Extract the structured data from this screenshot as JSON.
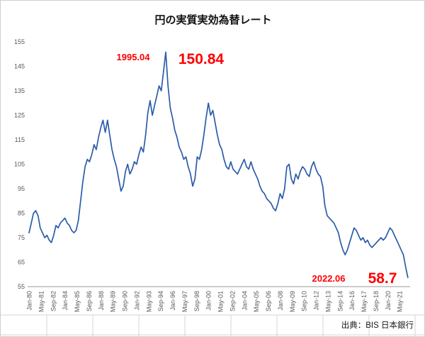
{
  "title": "円の実質実効為替レート",
  "source": "出典：BIS 日本銀行",
  "annotations": {
    "peak_date": "1995.04",
    "peak_value": "150.84",
    "trough_date": "2022.06",
    "trough_value": "58.7"
  },
  "colors": {
    "line": "#2a5caa",
    "annotation": "#ff0000",
    "axis_text": "#595959",
    "axis_line": "#9a9a9a",
    "sheet_grid": "#d4d4d4"
  },
  "chart_data": {
    "type": "line",
    "title": "円の実質実効為替レート",
    "xlabel": "",
    "ylabel": "",
    "ylim": [
      55,
      155
    ],
    "y_ticks": [
      55,
      65,
      75,
      85,
      95,
      105,
      115,
      125,
      135,
      145,
      155
    ],
    "grid": "off",
    "legend": "none",
    "x_tick_interval_months": 16,
    "x_tick_labels": [
      "Jan-80",
      "May-81",
      "Sep-82",
      "Jan-84",
      "May-85",
      "Sep-86",
      "Jan-88",
      "May-89",
      "Sep-90",
      "Jan-92",
      "May-93",
      "Sep-94",
      "Jan-96",
      "May-97",
      "Sep-98",
      "Jan-00",
      "May-01",
      "Sep-02",
      "Jan-04",
      "May-05",
      "Sep-06",
      "Jan-08",
      "May-09",
      "Sep-10",
      "Jan-12",
      "May-13",
      "Sep-14",
      "Jan-16",
      "May-17",
      "Sep-18",
      "Jan-20",
      "May-21"
    ],
    "series": [
      {
        "name": "円の実質実効為替レート",
        "x_start_year": 1980.0,
        "x_step_years": 0.25,
        "values": [
          77,
          81,
          85,
          86,
          84,
          79,
          77,
          75,
          76,
          74,
          73,
          76,
          80,
          79,
          81,
          82,
          83,
          81,
          80,
          78,
          77,
          78,
          82,
          90,
          98,
          104,
          107,
          106,
          109,
          113,
          111,
          116,
          120,
          123,
          118,
          123,
          117,
          111,
          107,
          104,
          99,
          94,
          96,
          102,
          105,
          101,
          103,
          106,
          105,
          109,
          112,
          110,
          117,
          126,
          131,
          125,
          129,
          133,
          137,
          135,
          143,
          150.84,
          137,
          128,
          124,
          119,
          116,
          112,
          110,
          107,
          108,
          104,
          101,
          96,
          99,
          108,
          107,
          111,
          117,
          124,
          130,
          125,
          127,
          122,
          117,
          113,
          111,
          107,
          104,
          103,
          106,
          103,
          102,
          101,
          103,
          105,
          107,
          104,
          103,
          106,
          103,
          101,
          99,
          96,
          94,
          93,
          91,
          90,
          89,
          87,
          86,
          89,
          93,
          91,
          95,
          104,
          105,
          99,
          97,
          101,
          99,
          102,
          104,
          103,
          101,
          100,
          104,
          106,
          103,
          101,
          100,
          96,
          88,
          84,
          83,
          82,
          81,
          79,
          77,
          73,
          70,
          68,
          70,
          73,
          76,
          79,
          78,
          76,
          74,
          75,
          73,
          74,
          72,
          71,
          72,
          73,
          74,
          75,
          74,
          75,
          77,
          79,
          78,
          76,
          74,
          72,
          70,
          68,
          63,
          58.7
        ]
      }
    ]
  }
}
